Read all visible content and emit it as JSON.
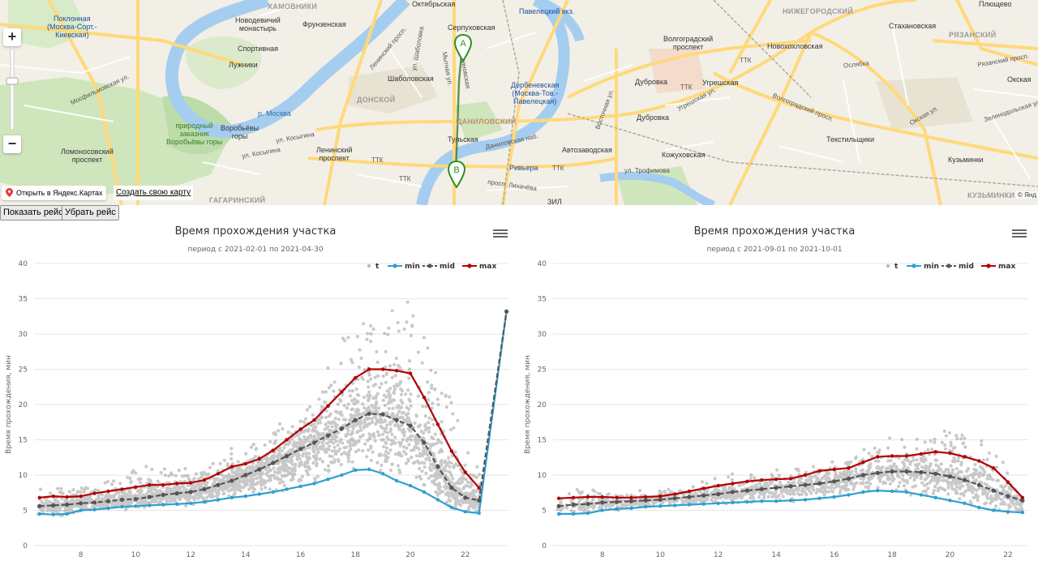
{
  "map": {
    "labels": {
      "khamovniki": "ХАМОВНИКИ",
      "nizhegorodsky": "НИЖЕГОРОДСКИЙ",
      "ryazansky": "РЯЗАНСКИЙ",
      "donskoy": "ДОНСКОЙ",
      "danilovsky": "ДАНИЛОВСКИЙ",
      "gagarinsky": "ГАГАРИНСКИЙ",
      "kuzminki_d": "КУЗЬМИНКИ",
      "poklonnaya": "Поклонная\n(Москва-Сорт.-\nКиевская)",
      "novodevichy": "Новодевичий\nмонастырь",
      "frunzenskaya": "Фрунзенская",
      "sportivnaya": "Спортивная",
      "luzhniki": "Лужники",
      "oktyabrskaya": "Октябрьская",
      "serpukhovskaya": "Серпуховская",
      "paveletsky": "Павелецкий вкз.",
      "volgogradsky": "Волгоградский\nпроспект",
      "novokhokhlovskaya": "Новохохловская",
      "stakhanovskaya": "Стахановская",
      "plyushchevo": "Плющево",
      "dubrovka1": "Дубровка",
      "dubrovka2": "Дубровка",
      "ugreshskaya": "Угрешская",
      "okskaya": "Окская",
      "shabolovskaya": "Шаболовская",
      "derbenevskaya": "Дербеневская\n(Москва-Тов.-\nПавелецкая)",
      "tulskaya": "Тульская",
      "avtozavodskaya": "Автозаводская",
      "riviera": "Ривьера",
      "kozhukhovskaya": "Кожуховская",
      "tekstilshchiki": "Текстильщики",
      "kuzminki": "Кузьминки",
      "leninsky": "Ленинский\nпроспект",
      "lomonosovsky": "Ломоносовский\nпроспект",
      "vorobyovy": "Воробьёвы\nгоры",
      "zapovednik": "природный\nзаказник\nВоробьёвы горы",
      "zil": "ЗИЛ",
      "ttk1": "ТТК",
      "ttk2": "ТТК",
      "ttk3": "ТТК",
      "ttk4": "ТТК",
      "ttk5": "ТТК",
      "moskva_river": "р. Москва",
      "mosfilmovskaya": "Мосфильмовская ул.",
      "kosygina": "ул. Косыгина",
      "kosygina2": "ул. Косыгина",
      "leninsky_prosp": "Ленинский просп.",
      "shabolovka": "ул. Шаболовка",
      "mytnaya": "Мытная ул.",
      "luschikova": "Люсиновская",
      "volgogradsky_prosp": "Волгоградский просп.",
      "trofimova": "ул. Трофимова",
      "likhacheva": "просп. Лихачёва",
      "danilovskaya_nab": "Даниловская наб.",
      "ugreshskaya_ul": "Угрешская ул.",
      "okskaya_ul": "Окская ул.",
      "zelenodolskaya": "Зеленодольская ул.",
      "ryazansky_prosp": "Рязанский просп.",
      "marker_a": "A",
      "marker_b": "B",
      "kolomna": "Ослябка",
      "vostochnaya": "Восточная ул."
    },
    "open_yandex": "Открыть в Яндекс.Картах",
    "create_map": "Создать свою карту",
    "copyright": "© Янд",
    "zoom_in": "+",
    "zoom_out": "−"
  },
  "buttons": {
    "show": "Показать рейс",
    "hide": "Убрать рейс"
  },
  "colors": {
    "t": "#888888",
    "min": "#2e9fd0",
    "mid": "#555555",
    "max": "#b30000"
  },
  "chart_data": [
    {
      "type": "scatter",
      "title": "Время прохождения участка",
      "subtitle": "период с 2021-02-01 по 2021-04-30",
      "ylabel": "Время прохождения, мин",
      "xlabel": "",
      "xlim": [
        6.3,
        23.6
      ],
      "ylim": [
        0,
        40
      ],
      "xticks": [
        8,
        10,
        12,
        14,
        16,
        18,
        20,
        22
      ],
      "yticks": [
        0,
        5,
        10,
        15,
        20,
        25,
        30,
        35,
        40
      ],
      "legend": [
        "t",
        "min",
        "mid",
        "max"
      ],
      "legend_position": "top-right",
      "grid": true,
      "scatter_model": {
        "seed": 11,
        "count": 2600,
        "spread": 0.45,
        "xmax": 22.6
      },
      "series": [
        {
          "name": "min",
          "x": [
            6.5,
            7,
            7.5,
            8,
            8.5,
            9,
            9.5,
            10,
            10.5,
            11,
            11.5,
            12,
            12.5,
            13,
            13.5,
            14,
            14.5,
            15,
            15.5,
            16,
            16.5,
            17,
            17.5,
            18,
            18.5,
            19,
            19.5,
            20,
            20.5,
            21,
            21.5,
            22,
            22.5,
            23.5
          ],
          "y": [
            4.5,
            4.4,
            4.5,
            5.0,
            5.1,
            5.3,
            5.5,
            5.6,
            5.7,
            5.8,
            5.9,
            6.0,
            6.2,
            6.5,
            6.8,
            7.0,
            7.3,
            7.6,
            8.0,
            8.4,
            8.8,
            9.4,
            10.0,
            10.7,
            10.8,
            10.2,
            9.2,
            8.5,
            7.6,
            6.5,
            5.4,
            4.8,
            4.6,
            33.2
          ]
        },
        {
          "name": "mid",
          "x": [
            6.5,
            7,
            7.5,
            8,
            8.5,
            9,
            9.5,
            10,
            10.5,
            11,
            11.5,
            12,
            12.5,
            13,
            13.5,
            14,
            14.5,
            15,
            15.5,
            16,
            16.5,
            17,
            17.5,
            18,
            18.5,
            19,
            19.5,
            20,
            20.5,
            21,
            21.5,
            22,
            22.5,
            23.5
          ],
          "y": [
            5.6,
            5.7,
            5.8,
            6.0,
            6.1,
            6.3,
            6.5,
            6.6,
            6.9,
            7.2,
            7.4,
            7.6,
            8.0,
            8.6,
            9.2,
            10.0,
            10.8,
            11.7,
            12.7,
            13.7,
            14.6,
            15.6,
            16.6,
            17.8,
            18.7,
            18.6,
            17.8,
            17.0,
            14.6,
            11.2,
            8.2,
            6.8,
            6.4,
            33.2
          ]
        },
        {
          "name": "max",
          "x": [
            6.5,
            7,
            7.5,
            8,
            8.5,
            9,
            9.5,
            10,
            10.5,
            11,
            11.5,
            12,
            12.5,
            13,
            13.5,
            14,
            14.5,
            15,
            15.5,
            16,
            16.5,
            17,
            17.5,
            18,
            18.5,
            19,
            19.5,
            20,
            20.5,
            21,
            21.5,
            22,
            22.5
          ],
          "y": [
            6.8,
            7.0,
            6.9,
            7.0,
            7.4,
            7.7,
            8.0,
            8.3,
            8.6,
            8.6,
            8.8,
            8.9,
            9.3,
            10.2,
            11.2,
            11.6,
            12.3,
            13.5,
            15.0,
            16.5,
            17.8,
            19.8,
            21.8,
            23.8,
            25.0,
            25.0,
            24.8,
            24.4,
            21.0,
            17.2,
            13.4,
            10.4,
            8.2
          ]
        }
      ]
    },
    {
      "type": "scatter",
      "title": "Время прохождения участка",
      "subtitle": "период с 2021-09-01 по 2021-10-01",
      "ylabel": "Время прохождения, мин",
      "xlabel": "",
      "xlim": [
        6.3,
        22.7
      ],
      "ylim": [
        0,
        40
      ],
      "xticks": [
        8,
        10,
        12,
        14,
        16,
        18,
        20,
        22
      ],
      "yticks": [
        0,
        5,
        10,
        15,
        20,
        25,
        30,
        35,
        40
      ],
      "legend": [
        "t",
        "min",
        "mid",
        "max"
      ],
      "legend_position": "top-right",
      "grid": true,
      "scatter_model": {
        "seed": 29,
        "count": 1500,
        "spread": 0.35,
        "xmax": 22.5
      },
      "series": [
        {
          "name": "min",
          "x": [
            6.5,
            7,
            7.5,
            8,
            8.5,
            9,
            9.5,
            10,
            10.5,
            11,
            11.5,
            12,
            12.5,
            13,
            13.5,
            14,
            14.5,
            15,
            15.5,
            16,
            16.5,
            17,
            17.5,
            18,
            18.5,
            19,
            19.5,
            20,
            20.5,
            21,
            21.5,
            22,
            22.5
          ],
          "y": [
            4.5,
            4.5,
            4.6,
            5.0,
            5.2,
            5.3,
            5.5,
            5.6,
            5.7,
            5.8,
            5.9,
            6.0,
            6.1,
            6.2,
            6.3,
            6.3,
            6.4,
            6.5,
            6.7,
            6.9,
            7.2,
            7.6,
            7.8,
            7.7,
            7.6,
            7.2,
            6.8,
            6.4,
            6.0,
            5.4,
            5.0,
            4.8,
            4.7
          ]
        },
        {
          "name": "mid",
          "x": [
            6.5,
            7,
            7.5,
            8,
            8.5,
            9,
            9.5,
            10,
            10.5,
            11,
            11.5,
            12,
            12.5,
            13,
            13.5,
            14,
            14.5,
            15,
            15.5,
            16,
            16.5,
            17,
            17.5,
            18,
            18.5,
            19,
            19.5,
            20,
            20.5,
            21,
            21.5,
            22,
            22.5
          ],
          "y": [
            5.6,
            5.8,
            5.9,
            6.1,
            6.2,
            6.3,
            6.4,
            6.5,
            6.7,
            6.9,
            7.1,
            7.3,
            7.6,
            7.8,
            8.0,
            8.2,
            8.4,
            8.6,
            8.8,
            9.1,
            9.5,
            10.0,
            10.3,
            10.5,
            10.5,
            10.4,
            10.2,
            9.8,
            9.3,
            8.6,
            7.8,
            7.0,
            6.4
          ]
        },
        {
          "name": "max",
          "x": [
            6.5,
            7,
            7.5,
            8,
            8.5,
            9,
            9.5,
            10,
            10.5,
            11,
            11.5,
            12,
            12.5,
            13,
            13.5,
            14,
            14.5,
            15,
            15.5,
            16,
            16.5,
            17,
            17.5,
            18,
            18.5,
            19,
            19.5,
            20,
            20.5,
            21,
            21.5,
            22,
            22.5
          ],
          "y": [
            6.7,
            6.8,
            6.9,
            6.9,
            6.8,
            6.8,
            6.9,
            7.0,
            7.3,
            7.7,
            8.1,
            8.5,
            8.8,
            9.1,
            9.3,
            9.4,
            9.5,
            10.0,
            10.6,
            10.8,
            11.0,
            11.8,
            12.6,
            12.7,
            12.7,
            13.0,
            13.3,
            13.1,
            12.6,
            12.0,
            11.0,
            9.0,
            6.8
          ]
        }
      ]
    }
  ]
}
